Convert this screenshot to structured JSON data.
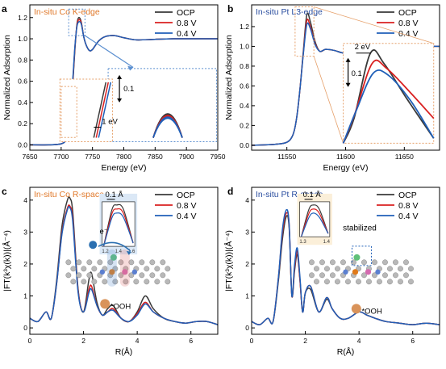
{
  "colors": {
    "ocp": "#3a3a3a",
    "v08": "#d92020",
    "v04": "#1f5fb8",
    "orange": "#e0792b",
    "blue_title": "#2c4fa0",
    "dashed_blue": "#5b8fd0",
    "dashed_orange": "#e6a06a"
  },
  "chart_data": [
    {
      "type": "line",
      "panel": "a",
      "title": "In-situ Co K-edge",
      "xlabel": "Energy (eV)",
      "ylabel": "Normalized Adsorption",
      "xlim": [
        7650,
        7950
      ],
      "ylim": [
        -0.05,
        1.32
      ],
      "xticks": [
        7650,
        7700,
        7750,
        7800,
        7850,
        7900,
        7950
      ],
      "yticks": [
        0.0,
        0.2,
        0.4,
        0.6,
        0.8,
        1.0,
        1.2
      ],
      "xtick_labels": [
        "7650",
        "7700",
        "7750",
        "7800",
        "7850",
        "7900",
        "7950"
      ],
      "ytick_labels": [
        "0.0",
        "0.2",
        "0.4",
        "0.6",
        "0.8",
        "1.0",
        "1.2"
      ],
      "legend": [
        "OCP",
        "0.8 V",
        "0.4 V"
      ],
      "legend_position": "top-right",
      "x": [
        7650,
        7680,
        7700,
        7708,
        7712,
        7716,
        7719,
        7722,
        7725,
        7728,
        7732,
        7736,
        7740,
        7745,
        7750,
        7760,
        7770,
        7785,
        7800,
        7820,
        7850,
        7880,
        7910,
        7950
      ],
      "series": [
        {
          "name": "OCP",
          "values": [
            0.0,
            0.0,
            0.01,
            0.05,
            0.15,
            0.38,
            0.62,
            0.9,
            1.13,
            1.2,
            1.16,
            1.02,
            0.94,
            0.89,
            0.9,
            0.98,
            1.02,
            1.03,
            1.01,
            0.99,
            0.995,
            1.0,
            1.0,
            1.0
          ]
        },
        {
          "name": "0.8 V",
          "values": [
            0.0,
            0.0,
            0.01,
            0.05,
            0.16,
            0.4,
            0.64,
            0.92,
            1.12,
            1.18,
            1.15,
            1.02,
            0.94,
            0.89,
            0.9,
            0.98,
            1.02,
            1.03,
            1.01,
            0.99,
            0.995,
            1.0,
            1.0,
            1.0
          ]
        },
        {
          "name": "0.4 V",
          "values": [
            0.0,
            0.0,
            0.01,
            0.05,
            0.17,
            0.42,
            0.66,
            0.93,
            1.11,
            1.16,
            1.14,
            1.02,
            0.94,
            0.89,
            0.9,
            0.98,
            1.02,
            1.03,
            1.01,
            0.99,
            0.995,
            1.0,
            1.0,
            1.0
          ]
        }
      ],
      "annotations": [
        "0.1",
        "1 eV"
      ]
    },
    {
      "type": "line",
      "panel": "b",
      "title": "In-situ Pt L3-edge",
      "xlabel": "Energy (eV)",
      "ylabel": "Normalized Adsorption",
      "xlim": [
        11520,
        11680
      ],
      "ylim": [
        -0.05,
        1.42
      ],
      "xticks": [
        11550,
        11600,
        11650
      ],
      "yticks": [
        0.0,
        0.2,
        0.4,
        0.6,
        0.8,
        1.0,
        1.2
      ],
      "xtick_labels": [
        "11550",
        "11600",
        "11650"
      ],
      "ytick_labels": [
        "0.0",
        "0.2",
        "0.4",
        "0.6",
        "0.8",
        "1.0",
        "1.2"
      ],
      "legend": [
        "OCP",
        "0.8 V",
        "0.4 V"
      ],
      "legend_position": "top-right",
      "x": [
        11520,
        11540,
        11550,
        11555,
        11558,
        11561,
        11564,
        11567,
        11570,
        11574,
        11578,
        11583,
        11590,
        11600,
        11615,
        11630,
        11650,
        11665,
        11680
      ],
      "series": [
        {
          "name": "OCP",
          "values": [
            0.0,
            0.01,
            0.03,
            0.1,
            0.25,
            0.55,
            0.95,
            1.32,
            1.25,
            1.05,
            0.95,
            0.97,
            0.96,
            0.93,
            0.95,
            0.98,
            0.99,
            1.0,
            1.0
          ]
        },
        {
          "name": "0.8 V",
          "values": [
            0.0,
            0.01,
            0.03,
            0.1,
            0.25,
            0.55,
            0.93,
            1.26,
            1.2,
            1.03,
            0.95,
            0.97,
            0.96,
            0.93,
            0.95,
            0.98,
            0.99,
            1.0,
            1.0
          ]
        },
        {
          "name": "0.4 V",
          "values": [
            0.0,
            0.01,
            0.03,
            0.1,
            0.25,
            0.55,
            0.92,
            1.22,
            1.18,
            1.02,
            0.95,
            0.97,
            0.96,
            0.93,
            0.95,
            0.98,
            0.99,
            1.0,
            1.0
          ]
        }
      ],
      "annotations": [
        "2 eV",
        "0.1"
      ]
    },
    {
      "type": "line",
      "panel": "c",
      "title": "In-situ Co R-space",
      "xlabel": "R(Å)",
      "ylabel": "|FT(k³χ(k))|(Å⁻⁴)",
      "xlim": [
        0,
        7
      ],
      "ylim": [
        -0.2,
        4.4
      ],
      "xticks": [
        0,
        2,
        4,
        6
      ],
      "yticks": [
        0,
        1,
        2,
        3,
        4
      ],
      "xtick_labels": [
        "0",
        "2",
        "4",
        "6"
      ],
      "ytick_labels": [
        "0",
        "1",
        "2",
        "3",
        "4"
      ],
      "legend": [
        "OCP",
        "0.8 V",
        "0.4 V"
      ],
      "legend_position": "top-right",
      "x": [
        0,
        0.3,
        0.6,
        0.8,
        1.0,
        1.2,
        1.4,
        1.5,
        1.6,
        1.8,
        2.0,
        2.2,
        2.3,
        2.5,
        2.7,
        2.9,
        3.1,
        3.4,
        3.7,
        4.0,
        4.3,
        4.6,
        5.0,
        5.4,
        5.8,
        6.2,
        6.6,
        7.0
      ],
      "series": [
        {
          "name": "OCP",
          "values": [
            0.3,
            0.2,
            0.5,
            0.3,
            1.5,
            3.2,
            4.0,
            4.05,
            3.6,
            1.2,
            0.5,
            1.5,
            1.7,
            0.8,
            0.4,
            0.6,
            0.7,
            0.3,
            0.2,
            0.5,
            1.0,
            0.6,
            0.3,
            0.2,
            0.15,
            0.2,
            0.2,
            0.1
          ]
        },
        {
          "name": "0.8 V",
          "values": [
            0.3,
            0.2,
            0.5,
            0.3,
            1.4,
            3.0,
            3.75,
            3.8,
            3.4,
            1.15,
            0.5,
            1.2,
            1.3,
            0.7,
            0.4,
            0.5,
            0.6,
            0.3,
            0.2,
            0.45,
            0.8,
            0.5,
            0.3,
            0.2,
            0.15,
            0.2,
            0.2,
            0.1
          ]
        },
        {
          "name": "0.4 V",
          "values": [
            0.3,
            0.2,
            0.5,
            0.3,
            1.4,
            2.95,
            3.7,
            3.75,
            3.3,
            1.1,
            0.5,
            1.1,
            1.2,
            0.7,
            0.4,
            0.5,
            0.55,
            0.3,
            0.2,
            0.4,
            0.75,
            0.5,
            0.3,
            0.2,
            0.15,
            0.2,
            0.2,
            0.1
          ]
        }
      ],
      "annotations": [
        "0.1 Å",
        "e⁻",
        "*OOH"
      ],
      "inset_xticks": [
        "1.2",
        "1.4",
        "1.6"
      ]
    },
    {
      "type": "line",
      "panel": "d",
      "title": "In-situ Pt R-space",
      "xlabel": "R(Å)",
      "ylabel": "|FT(k³χ(k))|(Å⁻⁴)",
      "xlim": [
        0,
        7
      ],
      "ylim": [
        -0.2,
        4.4
      ],
      "xticks": [
        0,
        2,
        4,
        6
      ],
      "yticks": [
        0,
        1,
        2,
        3,
        4
      ],
      "xtick_labels": [
        "0",
        "2",
        "4",
        "6"
      ],
      "ytick_labels": [
        "0",
        "1",
        "2",
        "3",
        "4"
      ],
      "legend": [
        "OCP",
        "0.8 V",
        "0.4 V"
      ],
      "legend_position": "top-right",
      "x": [
        0,
        0.3,
        0.6,
        0.8,
        1.0,
        1.15,
        1.3,
        1.4,
        1.5,
        1.6,
        1.7,
        1.8,
        1.9,
        2.0,
        2.2,
        2.5,
        2.8,
        3.0,
        3.3,
        3.6,
        4.0,
        4.3,
        4.6,
        5.0,
        5.5,
        6.0,
        6.5,
        7.0
      ],
      "series": [
        {
          "name": "OCP",
          "values": [
            0.2,
            0.1,
            0.3,
            0.2,
            1.5,
            2.8,
            3.5,
            3.1,
            1.0,
            1.8,
            2.3,
            1.5,
            0.5,
            1.1,
            1.2,
            0.5,
            0.9,
            0.6,
            0.3,
            0.3,
            0.5,
            0.4,
            0.3,
            0.2,
            0.15,
            0.1,
            0.15,
            0.1
          ]
        },
        {
          "name": "0.8 V",
          "values": [
            0.2,
            0.1,
            0.3,
            0.2,
            1.6,
            3.0,
            3.6,
            3.2,
            1.0,
            1.9,
            2.4,
            1.5,
            0.5,
            1.1,
            1.3,
            0.5,
            0.95,
            0.6,
            0.3,
            0.3,
            0.5,
            0.4,
            0.3,
            0.2,
            0.15,
            0.1,
            0.15,
            0.1
          ]
        },
        {
          "name": "0.4 V",
          "values": [
            0.2,
            0.1,
            0.3,
            0.2,
            1.6,
            3.1,
            3.7,
            3.2,
            1.0,
            2.0,
            2.5,
            1.6,
            0.5,
            1.1,
            1.3,
            0.5,
            0.95,
            0.6,
            0.3,
            0.3,
            0.5,
            0.4,
            0.3,
            0.2,
            0.15,
            0.1,
            0.15,
            0.1
          ]
        }
      ],
      "annotations": [
        "0.1 Å",
        "stabilized",
        "*OOH"
      ],
      "inset_xticks": [
        "1.3",
        "1.4"
      ]
    }
  ]
}
